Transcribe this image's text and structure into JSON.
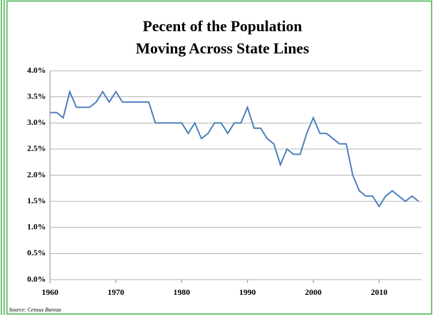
{
  "chart_data": {
    "type": "line",
    "title": [
      "Pecent of the Population",
      "Moving Across State Lines"
    ],
    "source": "Source:  Census Bureau",
    "x": [
      1960,
      1961,
      1962,
      1963,
      1964,
      1965,
      1966,
      1967,
      1968,
      1969,
      1970,
      1971,
      1972,
      1973,
      1974,
      1975,
      1976,
      1977,
      1978,
      1979,
      1980,
      1981,
      1982,
      1983,
      1984,
      1985,
      1986,
      1987,
      1988,
      1989,
      1990,
      1991,
      1992,
      1993,
      1994,
      1995,
      1996,
      1997,
      1998,
      1999,
      2000,
      2001,
      2002,
      2003,
      2004,
      2005,
      2006,
      2007,
      2008,
      2009,
      2010,
      2011,
      2012,
      2013,
      2014,
      2015,
      2016
    ],
    "series": [
      {
        "name": "Percent moving across state lines",
        "color": "#4a7ebb",
        "values": [
          3.2,
          3.2,
          3.1,
          3.6,
          3.3,
          3.3,
          3.3,
          3.4,
          3.6,
          3.4,
          3.6,
          3.4,
          3.4,
          3.4,
          3.4,
          3.4,
          3.0,
          3.0,
          3.0,
          3.0,
          3.0,
          2.8,
          3.0,
          2.7,
          2.8,
          3.0,
          3.0,
          2.8,
          3.0,
          3.0,
          3.3,
          2.9,
          2.9,
          2.7,
          2.6,
          2.2,
          2.5,
          2.4,
          2.4,
          2.8,
          3.1,
          2.8,
          2.8,
          2.7,
          2.6,
          2.6,
          2.0,
          1.7,
          1.6,
          1.6,
          1.4,
          1.6,
          1.7,
          1.6,
          1.5,
          1.6,
          1.5
        ]
      }
    ],
    "xlim": [
      1960,
      2016.5
    ],
    "xticks": [
      1960,
      1970,
      1980,
      1990,
      2000,
      2010
    ],
    "ylim": [
      0,
      4
    ],
    "yticks": [
      {
        "value": 0,
        "label": "0.0%"
      },
      {
        "value": 0.5,
        "label": "0.5%"
      },
      {
        "value": 1,
        "label": "1.0%"
      },
      {
        "value": 1.5,
        "label": "1.5%"
      },
      {
        "value": 2,
        "label": "2.0%"
      },
      {
        "value": 2.5,
        "label": "2.5%"
      },
      {
        "value": 3,
        "label": "3.0%"
      },
      {
        "value": 3.5,
        "label": "3.5%"
      },
      {
        "value": 4,
        "label": "4.0%"
      }
    ],
    "grid": true
  }
}
